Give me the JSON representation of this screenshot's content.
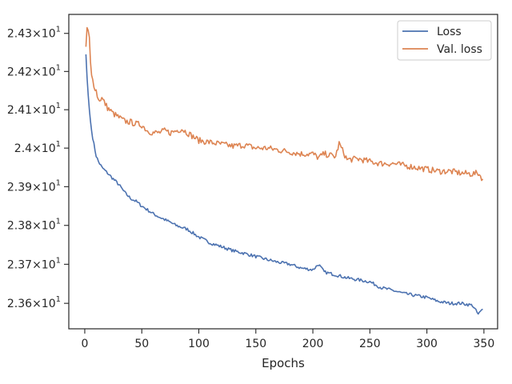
{
  "chart_data": {
    "type": "line",
    "title": "",
    "xlabel": "Epochs",
    "ylabel": "",
    "xlim": [
      -14,
      362
    ],
    "ylim": [
      23.535,
      24.35
    ],
    "y_scale": "log",
    "grid": false,
    "legend_placement": "top-right",
    "x_ticks": [
      0,
      50,
      100,
      150,
      200,
      250,
      300,
      350
    ],
    "x_tick_labels": [
      "0",
      "50",
      "100",
      "150",
      "200",
      "250",
      "300",
      "350"
    ],
    "y_ticks": [
      23.6,
      23.7,
      23.8,
      23.9,
      24.0,
      24.1,
      24.2,
      24.3
    ],
    "y_tick_labels": [
      {
        "mant": "2.36",
        "base": "10",
        "exp": "1"
      },
      {
        "mant": "2.37",
        "base": "10",
        "exp": "1"
      },
      {
        "mant": "2.38",
        "base": "10",
        "exp": "1"
      },
      {
        "mant": "2.39",
        "base": "10",
        "exp": "1"
      },
      {
        "mant": "2.4",
        "base": "10",
        "exp": "1"
      },
      {
        "mant": "2.41",
        "base": "10",
        "exp": "1"
      },
      {
        "mant": "2.42",
        "base": "10",
        "exp": "1"
      },
      {
        "mant": "2.43",
        "base": "10",
        "exp": "1"
      }
    ],
    "series": [
      {
        "name": "Loss",
        "color": "#4c72b0",
        "x": [
          1,
          2,
          3,
          4,
          5,
          6,
          8,
          10,
          12,
          15,
          20,
          25,
          30,
          35,
          40,
          45,
          50,
          55,
          60,
          65,
          70,
          75,
          80,
          85,
          90,
          95,
          100,
          110,
          120,
          130,
          140,
          150,
          160,
          170,
          180,
          190,
          200,
          205,
          210,
          220,
          230,
          240,
          250,
          260,
          270,
          280,
          290,
          300,
          310,
          320,
          330,
          340,
          345,
          349
        ],
        "y": [
          24.245,
          24.185,
          24.14,
          24.1,
          24.07,
          24.045,
          24.01,
          23.98,
          23.965,
          23.95,
          23.935,
          23.92,
          23.905,
          23.885,
          23.87,
          23.862,
          23.85,
          23.84,
          23.83,
          23.822,
          23.815,
          23.808,
          23.8,
          23.795,
          23.79,
          23.78,
          23.77,
          23.755,
          23.745,
          23.735,
          23.728,
          23.72,
          23.712,
          23.705,
          23.7,
          23.69,
          23.686,
          23.7,
          23.68,
          23.673,
          23.665,
          23.66,
          23.655,
          23.64,
          23.633,
          23.625,
          23.62,
          23.615,
          23.605,
          23.6,
          23.6,
          23.595,
          23.572,
          23.585
        ]
      },
      {
        "name": "Val. loss",
        "color": "#dd8452",
        "x": [
          1,
          2,
          3,
          4,
          5,
          6,
          8,
          10,
          12,
          15,
          20,
          25,
          30,
          35,
          40,
          45,
          50,
          55,
          60,
          65,
          70,
          75,
          80,
          85,
          90,
          95,
          100,
          110,
          120,
          130,
          140,
          150,
          160,
          170,
          180,
          190,
          200,
          205,
          210,
          220,
          223,
          230,
          240,
          250,
          260,
          270,
          280,
          290,
          300,
          310,
          320,
          330,
          340,
          345,
          349
        ],
        "y": [
          24.265,
          24.315,
          24.308,
          24.29,
          24.225,
          24.19,
          24.165,
          24.15,
          24.125,
          24.13,
          24.105,
          24.09,
          24.08,
          24.07,
          24.068,
          24.063,
          24.06,
          24.045,
          24.04,
          24.04,
          24.045,
          24.04,
          24.045,
          24.05,
          24.04,
          24.03,
          24.02,
          24.015,
          24.01,
          24.005,
          24.008,
          24.0,
          24.0,
          23.995,
          23.99,
          23.985,
          23.985,
          23.975,
          23.985,
          23.978,
          24.012,
          23.97,
          23.972,
          23.965,
          23.96,
          23.96,
          23.955,
          23.95,
          23.945,
          23.94,
          23.94,
          23.935,
          23.933,
          23.935,
          23.92
        ]
      }
    ]
  }
}
